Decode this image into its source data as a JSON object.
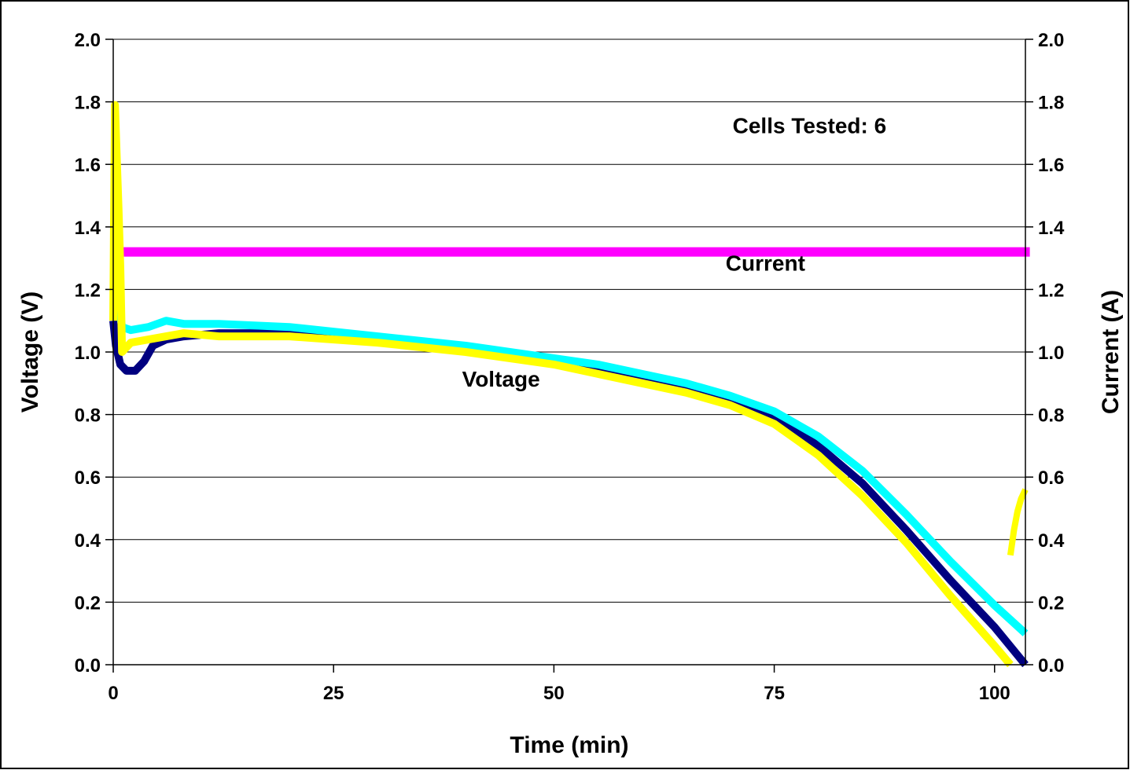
{
  "chart_data": {
    "type": "line",
    "title": "",
    "xlabel": "Time (min)",
    "ylabel": "Voltage (V)",
    "y2label": "Current (A)",
    "xlim": [
      0,
      103.5
    ],
    "ylim": [
      0,
      2.0
    ],
    "y2lim": [
      0,
      2.0
    ],
    "x_ticks": [
      "0",
      "25",
      "50",
      "75",
      "100"
    ],
    "x_tick_values": [
      0,
      25,
      50,
      75,
      100
    ],
    "y_ticks": [
      "0.0",
      "0.2",
      "0.4",
      "0.6",
      "0.8",
      "1.0",
      "1.2",
      "1.4",
      "1.6",
      "1.8",
      "2.0"
    ],
    "y_tick_values": [
      0,
      0.2,
      0.4,
      0.6,
      0.8,
      1.0,
      1.2,
      1.4,
      1.6,
      1.8,
      2.0
    ],
    "y2_ticks": [
      "0.0",
      "0.2",
      "0.4",
      "0.6",
      "0.8",
      "1.0",
      "1.2",
      "1.4",
      "1.6",
      "1.8",
      "2.0"
    ],
    "grid": "horizontal",
    "legend": "none",
    "annotations": [
      {
        "text": "Cells Tested: 6",
        "x": 79,
        "y": 1.7
      },
      {
        "text": "Current",
        "x": 74,
        "y": 1.26
      },
      {
        "text": "Voltage",
        "x": 44,
        "y": 0.89
      }
    ],
    "series": [
      {
        "color": "#ff00ff",
        "stroke_width": 12,
        "x": [
          0,
          104
        ],
        "y": [
          1.32,
          1.32
        ]
      },
      {
        "color": "#000080",
        "stroke_width": 10,
        "x": [
          0,
          0.3,
          0.8,
          1.5,
          2.5,
          3.5,
          4.5,
          6,
          8,
          12,
          20,
          30,
          40,
          50,
          55,
          60,
          65,
          70,
          75,
          80,
          85,
          90,
          95,
          100,
          103.5
        ],
        "y": [
          1.1,
          1.02,
          0.96,
          0.94,
          0.94,
          0.97,
          1.02,
          1.04,
          1.05,
          1.06,
          1.06,
          1.04,
          1.01,
          0.97,
          0.95,
          0.92,
          0.89,
          0.85,
          0.79,
          0.7,
          0.58,
          0.43,
          0.27,
          0.12,
          0.0
        ]
      },
      {
        "color": "#00ffff",
        "stroke_width": 10,
        "x": [
          0.2,
          0.5,
          1.0,
          2,
          4,
          6,
          8,
          12,
          20,
          30,
          40,
          50,
          55,
          60,
          65,
          70,
          75,
          80,
          85,
          90,
          95,
          100,
          103.5
        ],
        "y": [
          1.27,
          1.18,
          1.08,
          1.07,
          1.08,
          1.1,
          1.09,
          1.09,
          1.08,
          1.05,
          1.02,
          0.98,
          0.96,
          0.93,
          0.9,
          0.86,
          0.81,
          0.73,
          0.62,
          0.48,
          0.33,
          0.19,
          0.1
        ]
      },
      {
        "color": "#ffff00",
        "stroke_width": 10,
        "x": [
          0,
          0.2,
          0.4,
          0.6,
          0.8,
          1.0,
          2,
          4,
          6,
          8,
          12,
          20,
          30,
          40,
          50,
          55,
          60,
          65,
          70,
          75,
          80,
          85,
          90,
          95,
          100,
          101.8
        ],
        "y": [
          1.1,
          1.79,
          1.62,
          1.46,
          1.27,
          1.0,
          1.03,
          1.04,
          1.05,
          1.06,
          1.05,
          1.05,
          1.03,
          1.0,
          0.96,
          0.93,
          0.9,
          0.87,
          0.83,
          0.77,
          0.67,
          0.54,
          0.39,
          0.22,
          0.06,
          0.0
        ]
      },
      {
        "color": "#ffff00",
        "stroke_width": 8,
        "x": [
          101.8,
          102.2,
          102.6,
          103.0,
          103.5
        ],
        "y": [
          0.35,
          0.43,
          0.49,
          0.53,
          0.56
        ]
      }
    ]
  }
}
